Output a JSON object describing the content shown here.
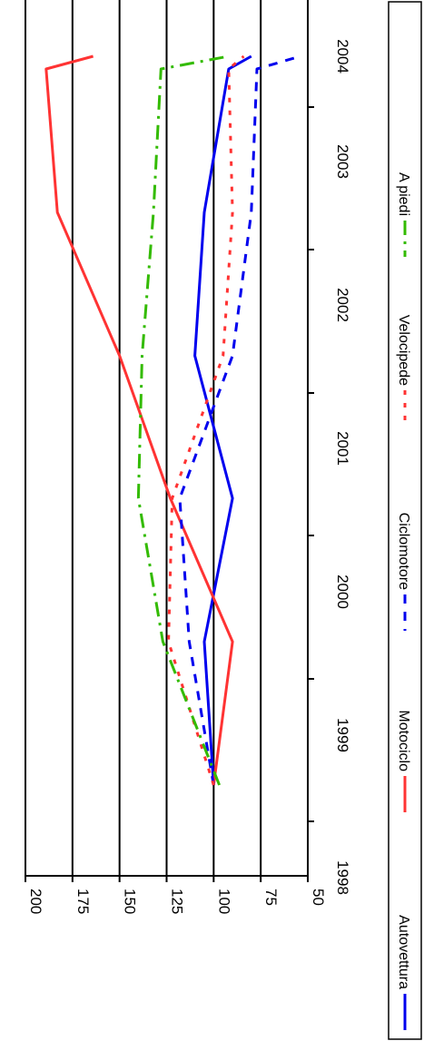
{
  "chart_data": {
    "type": "line",
    "orientation": "rotated-90-clockwise",
    "title": "",
    "xlabel": "",
    "ylabel": "",
    "categories": [
      "1998",
      "1999",
      "2000",
      "2001",
      "2002",
      "2003",
      "2004"
    ],
    "ylim": [
      50,
      200
    ],
    "yticks": [
      "200",
      "175",
      "150",
      "125",
      "100",
      "75",
      "50"
    ],
    "grid": true,
    "legend_position": "bottom",
    "series": [
      {
        "name": "Autovettura",
        "color": "#0000ee",
        "dash": "solid",
        "values": [
          100,
          105,
          90,
          110,
          105,
          92,
          80
        ]
      },
      {
        "name": "Motociclo",
        "color": "#ff3333",
        "dash": "solid",
        "values": [
          100,
          90,
          123,
          150,
          183,
          189,
          164
        ]
      },
      {
        "name": "Ciclomotore",
        "color": "#0000ee",
        "dash": "dashed",
        "values": [
          100,
          113,
          118,
          90,
          80,
          77,
          54
        ]
      },
      {
        "name": "Velocipede",
        "color": "#ff3333",
        "dash": "dotted",
        "values": [
          100,
          124,
          122,
          95,
          90,
          92,
          84
        ]
      },
      {
        "name": "A piedi",
        "color": "#33bb00",
        "dash": "dashdot",
        "values": [
          97,
          127,
          140,
          138,
          132,
          128,
          92
        ]
      }
    ]
  }
}
